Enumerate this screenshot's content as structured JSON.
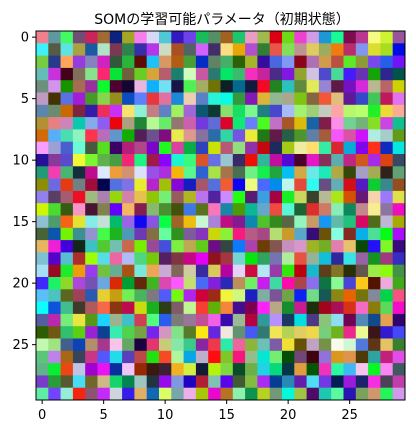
{
  "chart_data": {
    "type": "heatmap",
    "title": "SOMの学習可能パラメータ（初期状態）",
    "xlabel": "",
    "ylabel": "",
    "grid": false,
    "rows": 30,
    "cols": 30,
    "xlim": [
      -0.5,
      29.5
    ],
    "ylim": [
      29.5,
      -0.5
    ],
    "x_ticks": [
      0,
      5,
      10,
      15,
      20,
      25
    ],
    "y_ticks": [
      0,
      5,
      10,
      15,
      20,
      25
    ],
    "cell_colors": "random RGB weight vectors, one 3-channel color per unit of a 30x30 SOM grid"
  }
}
